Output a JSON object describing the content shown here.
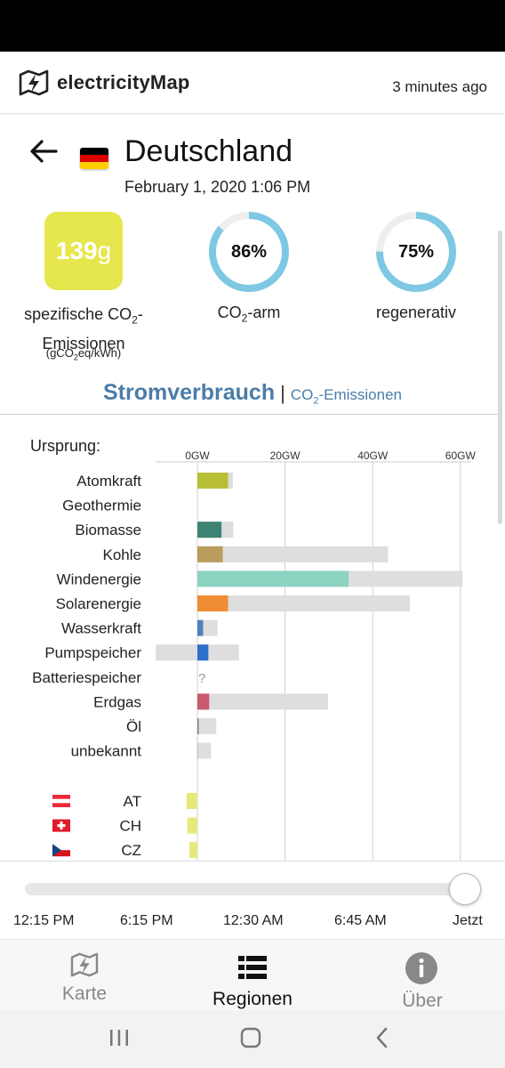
{
  "header": {
    "app_name": "electricityMap",
    "updated": "3 minutes ago"
  },
  "zone": {
    "name": "Deutschland",
    "datetime": "February 1, 2020 1:06 PM",
    "flag": [
      "#000000",
      "#dd0000",
      "#ffce00"
    ]
  },
  "stats": {
    "co2_value": "139",
    "co2_unit": "g",
    "co2_color": "#e6e64d",
    "co2_label_1": "spezifische CO",
    "co2_label_sub": "2",
    "co2_label_2": "-",
    "co2_label_3": "Emissionen",
    "co2_unit_label_1": "(gCO",
    "co2_unit_label_sub": "2",
    "co2_unit_label_2": "eq/kWh)",
    "low_carbon_percent": "86%",
    "low_carbon_fraction": 0.86,
    "low_carbon_label_1": "CO",
    "low_carbon_label_sub": "2",
    "low_carbon_label_2": "-arm",
    "renewable_percent": "75%",
    "renewable_fraction": 0.75,
    "renewable_label": "regenerativ",
    "gauge_color": "#7ec8e3"
  },
  "tabs": {
    "active": "Stromverbrauch",
    "separator": "|",
    "inactive_1": "CO",
    "inactive_sub": "2",
    "inactive_2": "-Emissionen"
  },
  "chart_data": {
    "type": "bar",
    "title": "Ursprung:",
    "x_ticks": [
      "0GW",
      "20GW",
      "40GW",
      "60GW"
    ],
    "x_tick_values": [
      0,
      20,
      40,
      60
    ],
    "xlim": [
      -9.5,
      62
    ],
    "rows": [
      {
        "name": "Atomkraft",
        "production": 7.0,
        "capacity": 8.1,
        "color": "#b8bf35"
      },
      {
        "name": "Geothermie",
        "production": 0,
        "capacity": 0,
        "color": "#ffffff"
      },
      {
        "name": "Biomasse",
        "production": 5.5,
        "capacity": 8.2,
        "color": "#3d8373"
      },
      {
        "name": "Kohle",
        "production": 5.8,
        "capacity": 43.5,
        "color": "#b99d5d"
      },
      {
        "name": "Windenergie",
        "production": 34.5,
        "capacity": 60.5,
        "color": "#8dd3c1"
      },
      {
        "name": "Solarenergie",
        "production": 7.0,
        "capacity": 48.5,
        "color": "#f08c33"
      },
      {
        "name": "Wasserkraft",
        "production": 1.3,
        "capacity": 4.6,
        "color": "#4e81bd"
      },
      {
        "name": "Pumpspeicher",
        "production": 2.5,
        "capacity": 9.5,
        "capacity_min": -9.5,
        "color": "#2f6fcc"
      },
      {
        "name": "Batteriespeicher",
        "production": null,
        "capacity": null,
        "color": "#cccccc",
        "unknown": "?"
      },
      {
        "name": "Erdgas",
        "production": 2.7,
        "capacity": 29.8,
        "color": "#c85a6e"
      },
      {
        "name": "Öl",
        "production": 0.3,
        "capacity": 4.3,
        "color": "#8b7d6b"
      },
      {
        "name": "unbekannt",
        "production": 0.1,
        "capacity": 3.1,
        "color": "#9e9e9e"
      }
    ],
    "exchanges": [
      {
        "name": "AT",
        "value": -2.5,
        "flag": "at"
      },
      {
        "name": "CH",
        "value": -2.3,
        "flag": "ch"
      },
      {
        "name": "CZ",
        "value": -1.8,
        "flag": "cz"
      }
    ],
    "exchange_color": "#e8e87a",
    "capacity_color": "#dedede"
  },
  "timeline": {
    "labels": [
      "12:15 PM",
      "6:15 PM",
      "12:30 AM",
      "6:45 AM",
      "Jetzt"
    ],
    "position": 1.0
  },
  "nav": {
    "map": "Karte",
    "regions": "Regionen",
    "about": "Über"
  }
}
